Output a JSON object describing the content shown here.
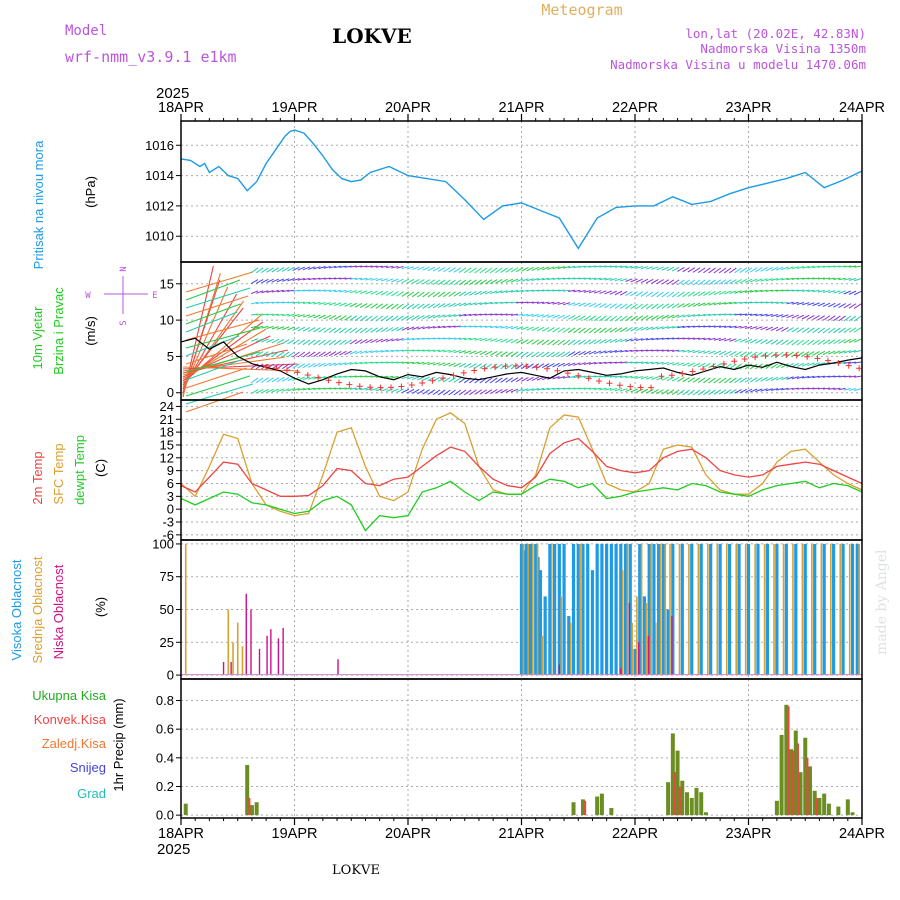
{
  "header": {
    "model_label": "Model",
    "model_name": "wrf-nmm_v3.9.1 e1km",
    "station": "LOKVE",
    "product": "Meteogram",
    "coords": "lon,lat (20.02E, 42.83N)",
    "elevation": "Nadmorska Visina 1350m",
    "model_elevation": "Nadmorska Visina u modelu 1470.06m"
  },
  "footer": {
    "station": "LOKVE",
    "credit": "made by Angel"
  },
  "time_axis": {
    "year": "2025",
    "ticks": [
      "18APR",
      "19APR",
      "20APR",
      "21APR",
      "22APR",
      "23APR",
      "24APR"
    ]
  },
  "compass": {
    "n": "N",
    "w": "W",
    "e": "E",
    "s": "S"
  },
  "panels": {
    "pressure": {
      "label1": "Pritisak na nivou mora",
      "unit": "(hPa)"
    },
    "wind": {
      "label1": "10m Vjetar",
      "label2": "Brzina i Pravac",
      "unit": "(m/s)"
    },
    "temp": {
      "label1": "2m Temp",
      "label2": "SFC Temp",
      "label3": "dewpt Temp",
      "unit": "(C)"
    },
    "cloud": {
      "label1": "Visoka Oblacnost",
      "label2": "Srednja Oblacnost",
      "label3": "Niska Oblacnost",
      "unit": "(%)"
    },
    "precip": {
      "unit": "1hr Precip (mm)"
    }
  },
  "precip_legend": [
    "Ukupna Kisa",
    "Konvek.Kisa",
    "Zaledj.Kisa",
    "Snijeg",
    "Grad"
  ],
  "colors": {
    "pressure": "#1e9be6",
    "wind_speed": "#000000",
    "temp_2m": "#ee4444",
    "temp_sfc": "#daa030",
    "dewpoint": "#22cc22",
    "cloud_high": "#1e9be6",
    "cloud_mid": "#daa030",
    "cloud_low": "#cc1188",
    "precip_total": "#22aa22",
    "precip_conv": "#ee4444",
    "precip_frz": "#f07830",
    "snow": "#4444dd",
    "hail": "#22bbbb",
    "title_purple": "#bb55dd",
    "meteogram_gold": "#e0b060"
  },
  "chart_data": [
    {
      "type": "line",
      "name": "pressure",
      "ylim": [
        1008.3,
        1017.6
      ],
      "yticks": [
        1010,
        1012,
        1014,
        1016
      ],
      "x_hours": [
        0,
        2,
        4,
        5,
        6,
        8,
        10,
        12,
        14,
        16,
        18,
        20,
        22,
        23,
        24,
        26,
        28,
        30,
        32,
        34,
        36,
        38,
        40,
        44,
        48,
        52,
        56,
        60,
        64,
        68,
        72,
        76,
        80,
        84,
        88,
        92,
        96,
        100,
        104,
        108,
        112,
        116,
        120,
        124,
        128,
        132,
        136,
        140,
        144
      ],
      "series": [
        {
          "values": [
            1015.1,
            1015.0,
            1014.6,
            1014.8,
            1014.2,
            1014.6,
            1014.0,
            1013.8,
            1013.0,
            1013.6,
            1014.8,
            1015.7,
            1016.6,
            1016.9,
            1017.0,
            1016.8,
            1016.1,
            1015.3,
            1014.4,
            1013.8,
            1013.6,
            1013.7,
            1014.2,
            1014.6,
            1014.0,
            1013.8,
            1013.6,
            1012.4,
            1011.1,
            1012.0,
            1012.2,
            1011.7,
            1011.2,
            1009.2,
            1011.2,
            1011.9,
            1012.0,
            1012.0,
            1012.6,
            1012.1,
            1012.3,
            1012.8,
            1013.2,
            1013.5,
            1013.8,
            1014.2,
            1013.2,
            1013.7,
            1014.3
          ]
        }
      ]
    },
    {
      "type": "line",
      "name": "wind",
      "ylim": [
        -1,
        18
      ],
      "yticks": [
        0,
        5,
        10,
        15
      ],
      "x_hours": [
        0,
        3,
        6,
        9,
        12,
        15,
        18,
        21,
        24,
        27,
        30,
        33,
        36,
        39,
        42,
        45,
        48,
        51,
        54,
        57,
        60,
        63,
        66,
        69,
        72,
        75,
        78,
        81,
        84,
        87,
        90,
        93,
        96,
        99,
        102,
        105,
        108,
        111,
        114,
        117,
        120,
        123,
        126,
        129,
        132,
        135,
        138,
        141,
        144
      ],
      "series": [
        {
          "values": [
            7.0,
            7.5,
            6.0,
            7.0,
            5.0,
            4.0,
            3.5,
            3.0,
            2.0,
            1.2,
            1.8,
            2.6,
            3.2,
            3.0,
            2.2,
            1.8,
            2.5,
            2.2,
            2.8,
            2.5,
            2.0,
            1.8,
            2.2,
            2.6,
            2.8,
            2.4,
            2.0,
            3.0,
            3.2,
            2.8,
            2.4,
            2.6,
            3.0,
            3.2,
            3.4,
            2.8,
            2.4,
            3.0,
            3.6,
            3.2,
            3.8,
            3.5,
            4.2,
            3.6,
            3.2,
            3.8,
            4.1,
            4.5,
            4.8
          ]
        }
      ]
    },
    {
      "type": "line",
      "name": "temperature",
      "ylim": [
        -7.2,
        25.5
      ],
      "yticks": [
        -6,
        -3,
        0,
        3,
        6,
        9,
        12,
        15,
        18,
        21,
        24
      ],
      "x_hours": [
        0,
        3,
        6,
        9,
        12,
        15,
        18,
        21,
        24,
        27,
        30,
        33,
        36,
        39,
        42,
        45,
        48,
        51,
        54,
        57,
        60,
        63,
        66,
        69,
        72,
        75,
        78,
        81,
        84,
        87,
        90,
        93,
        96,
        99,
        102,
        105,
        108,
        111,
        114,
        117,
        120,
        123,
        126,
        129,
        132,
        135,
        138,
        141,
        144
      ],
      "series": [
        {
          "name": "2m Temp",
          "values": [
            5.5,
            4.0,
            7.5,
            11.0,
            10.5,
            6.0,
            4.5,
            3.0,
            3.0,
            3.2,
            5.5,
            9.5,
            9.0,
            6.0,
            5.5,
            7.0,
            7.5,
            10.0,
            12.5,
            14.5,
            13.5,
            10.0,
            7.0,
            5.5,
            5.0,
            7.5,
            13.0,
            15.5,
            16.5,
            13.5,
            10.0,
            9.0,
            8.5,
            9.0,
            12.0,
            13.5,
            14.0,
            12.0,
            9.0,
            8.0,
            7.5,
            8.0,
            10.0,
            10.5,
            11.0,
            10.5,
            9.0,
            7.5,
            6.0
          ]
        },
        {
          "name": "SFC Temp",
          "values": [
            6.0,
            3.0,
            10.0,
            17.5,
            16.5,
            6.0,
            1.0,
            -0.5,
            -1.5,
            -1.0,
            8.0,
            18.0,
            19.0,
            10.0,
            3.0,
            2.0,
            4.0,
            14.0,
            21.0,
            22.5,
            20.0,
            10.0,
            4.5,
            3.5,
            3.5,
            8.0,
            19.0,
            22.0,
            21.5,
            14.0,
            6.0,
            4.5,
            4.0,
            6.0,
            14.0,
            15.0,
            14.5,
            8.0,
            4.5,
            3.5,
            3.5,
            6.0,
            11.0,
            13.5,
            14.0,
            11.0,
            8.0,
            6.0,
            4.5
          ]
        },
        {
          "name": "dewpt Temp",
          "values": [
            2.5,
            1.0,
            2.5,
            4.0,
            3.5,
            1.5,
            1.0,
            0.0,
            -1.0,
            -0.5,
            2.0,
            3.0,
            1.0,
            -5.0,
            -1.5,
            -2.0,
            -1.5,
            4.0,
            5.0,
            6.5,
            4.0,
            2.0,
            4.0,
            3.5,
            3.5,
            5.5,
            7.0,
            6.5,
            5.0,
            6.0,
            2.5,
            3.0,
            4.0,
            4.5,
            5.0,
            4.5,
            6.0,
            5.5,
            4.0,
            3.5,
            3.0,
            4.5,
            5.5,
            6.0,
            6.5,
            5.0,
            6.0,
            5.5,
            4.0
          ]
        }
      ]
    },
    {
      "type": "bar",
      "name": "cloud",
      "ylim": [
        -3,
        103
      ],
      "yticks": [
        0,
        25,
        50,
        75,
        100
      ],
      "high": [
        [
          72,
          100
        ],
        [
          72.5,
          95
        ],
        [
          73,
          100
        ],
        [
          73.5,
          100
        ],
        [
          74,
          100
        ],
        [
          75,
          100
        ],
        [
          75.5,
          90
        ],
        [
          76,
          80
        ],
        [
          77,
          60
        ],
        [
          78,
          100
        ],
        [
          79,
          100
        ],
        [
          80,
          100
        ],
        [
          81,
          100
        ],
        [
          82,
          45
        ],
        [
          83,
          100
        ],
        [
          84,
          100
        ],
        [
          85,
          100
        ],
        [
          86,
          100
        ],
        [
          87,
          80
        ],
        [
          88,
          100
        ],
        [
          89,
          100
        ],
        [
          90,
          100
        ],
        [
          91,
          100
        ],
        [
          92,
          100
        ],
        [
          93,
          100
        ],
        [
          94,
          100
        ],
        [
          95,
          100
        ],
        [
          97,
          100
        ],
        [
          99,
          100
        ],
        [
          100,
          100
        ],
        [
          101,
          100
        ],
        [
          102,
          100
        ],
        [
          104,
          100
        ],
        [
          106,
          100
        ],
        [
          108,
          100
        ],
        [
          110,
          100
        ],
        [
          112,
          100
        ],
        [
          114,
          100
        ],
        [
          116,
          100
        ],
        [
          118,
          100
        ],
        [
          120,
          100
        ],
        [
          122,
          100
        ],
        [
          124,
          100
        ],
        [
          126,
          100
        ],
        [
          128,
          100
        ],
        [
          130,
          100
        ],
        [
          132,
          100
        ],
        [
          134,
          100
        ],
        [
          136,
          100
        ],
        [
          138,
          100
        ],
        [
          140,
          100
        ],
        [
          142,
          100
        ],
        [
          143,
          100
        ],
        [
          96,
          20
        ],
        [
          98,
          60
        ],
        [
          103,
          50
        ]
      ],
      "mid": [
        [
          1,
          100
        ],
        [
          10,
          50
        ],
        [
          11,
          25
        ],
        [
          12,
          40
        ],
        [
          13,
          22
        ],
        [
          72.4,
          100
        ],
        [
          73.4,
          100
        ],
        [
          74.4,
          100
        ],
        [
          75.4,
          100
        ],
        [
          76.4,
          30
        ],
        [
          78.4,
          100
        ],
        [
          80.4,
          60
        ],
        [
          82.4,
          40
        ],
        [
          84.4,
          100
        ],
        [
          93.4,
          80
        ],
        [
          94.4,
          100
        ],
        [
          95.4,
          40
        ],
        [
          96.4,
          60
        ],
        [
          97.4,
          100
        ],
        [
          98.4,
          55
        ],
        [
          99.4,
          100
        ],
        [
          100.4,
          40
        ],
        [
          101.4,
          100
        ],
        [
          102.4,
          100
        ],
        [
          103.4,
          100
        ],
        [
          105.4,
          100
        ],
        [
          107.4,
          100
        ],
        [
          109.4,
          100
        ],
        [
          111.4,
          100
        ],
        [
          113.4,
          100
        ],
        [
          115.4,
          100
        ],
        [
          117.4,
          100
        ],
        [
          119.4,
          100
        ],
        [
          121.4,
          100
        ],
        [
          123.4,
          100
        ],
        [
          125.4,
          100
        ],
        [
          127.4,
          100
        ],
        [
          129.4,
          100
        ],
        [
          131.4,
          100
        ],
        [
          133.4,
          100
        ],
        [
          135.4,
          100
        ],
        [
          137.4,
          100
        ],
        [
          139.4,
          100
        ],
        [
          141.4,
          100
        ],
        [
          143.4,
          100
        ]
      ],
      "low": [
        [
          9,
          10
        ],
        [
          10.6,
          10
        ],
        [
          13.8,
          62
        ],
        [
          14.8,
          50
        ],
        [
          16.6,
          20
        ],
        [
          18.2,
          30
        ],
        [
          19,
          35
        ],
        [
          20.6,
          28
        ],
        [
          21.6,
          36
        ],
        [
          33.2,
          12
        ],
        [
          80,
          8
        ],
        [
          93,
          5
        ],
        [
          94.8,
          55
        ],
        [
          96.8,
          25
        ],
        [
          98.8,
          30
        ],
        [
          103.8,
          45
        ]
      ]
    },
    {
      "type": "bar",
      "name": "precipitation",
      "ylim": [
        -0.02,
        0.95
      ],
      "yticks": [
        0.0,
        0.2,
        0.4,
        0.6,
        0.8
      ],
      "total": [
        [
          1,
          0.08
        ],
        [
          14,
          0.35
        ],
        [
          15,
          0.07
        ],
        [
          16,
          0.09
        ],
        [
          83,
          0.09
        ],
        [
          85,
          0.11
        ],
        [
          88,
          0.13
        ],
        [
          89,
          0.15
        ],
        [
          91,
          0.05
        ],
        [
          103,
          0.23
        ],
        [
          104,
          0.57
        ],
        [
          105,
          0.45
        ],
        [
          106,
          0.24
        ],
        [
          107,
          0.16
        ],
        [
          108,
          0.12
        ],
        [
          109,
          0.19
        ],
        [
          110,
          0.16
        ],
        [
          111,
          0.02
        ],
        [
          126,
          0.1
        ],
        [
          127,
          0.56
        ],
        [
          128,
          0.77
        ],
        [
          129,
          0.46
        ],
        [
          130,
          0.59
        ],
        [
          131,
          0.3
        ],
        [
          132,
          0.54
        ],
        [
          133,
          0.34
        ],
        [
          134,
          0.17
        ],
        [
          135,
          0.12
        ],
        [
          136,
          0.15
        ],
        [
          137,
          0.08
        ],
        [
          139,
          0.06
        ],
        [
          141,
          0.11
        ],
        [
          142,
          0.02
        ]
      ],
      "convective": [
        [
          14,
          0.12
        ],
        [
          85,
          0.1
        ],
        [
          104,
          0.3
        ],
        [
          105,
          0.2
        ],
        [
          128,
          0.76
        ],
        [
          129,
          0.45
        ],
        [
          130,
          0.5
        ],
        [
          132,
          0.4
        ],
        [
          134,
          0.12
        ]
      ]
    }
  ]
}
